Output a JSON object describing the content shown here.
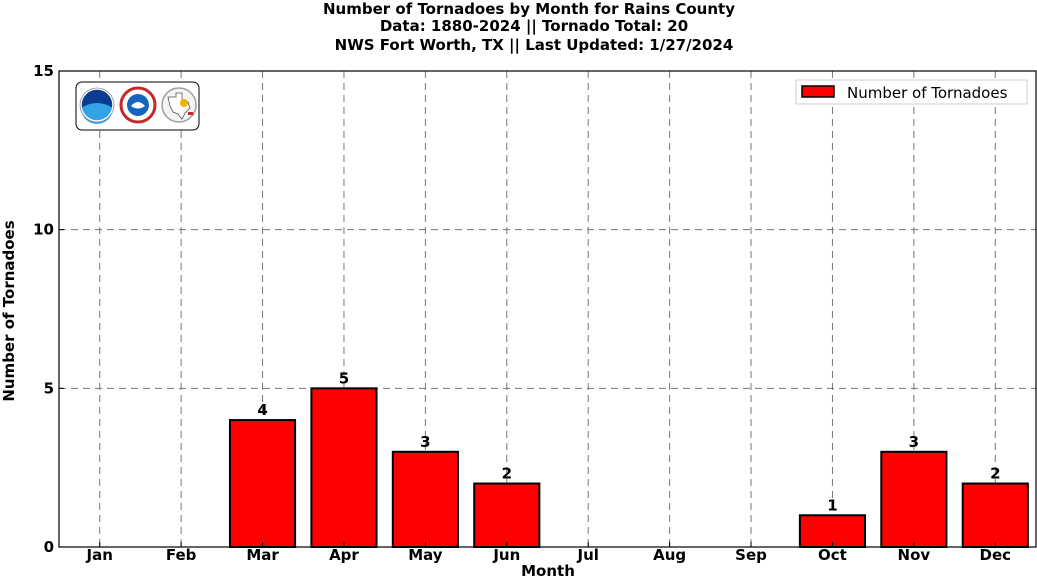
{
  "title_lines": [
    "Number of Tornadoes by Month for Rains County",
    "Data: 1880-2024 || Tornado Total: 20",
    "NWS Fort Worth, TX || Last Updated: 1/27/2024"
  ],
  "colors": {
    "bar": "#ff0000",
    "edge": "#000000",
    "grid": "#777777"
  },
  "logos": [
    "noaa-logo",
    "nws-logo",
    "nws-fort-worth-logo"
  ],
  "chart_data": {
    "type": "bar",
    "title": "Number of Tornadoes by Month for Rains County",
    "xlabel": "Month",
    "ylabel": "Number of Tornadoes",
    "categories": [
      "Jan",
      "Feb",
      "Mar",
      "Apr",
      "May",
      "Jun",
      "Jul",
      "Aug",
      "Sep",
      "Oct",
      "Nov",
      "Dec"
    ],
    "series": [
      {
        "name": "Number of Tornadoes",
        "values": [
          0,
          0,
          4,
          5,
          3,
          2,
          0,
          0,
          0,
          1,
          3,
          2
        ]
      }
    ],
    "data_labels": [
      "",
      "",
      "4",
      "5",
      "3",
      "2",
      "",
      "",
      "",
      "1",
      "3",
      "2"
    ],
    "ylim": [
      0,
      15
    ],
    "yticks": [
      "0",
      "5",
      "10",
      "15"
    ],
    "grid": true,
    "legend_position": "top-right"
  }
}
